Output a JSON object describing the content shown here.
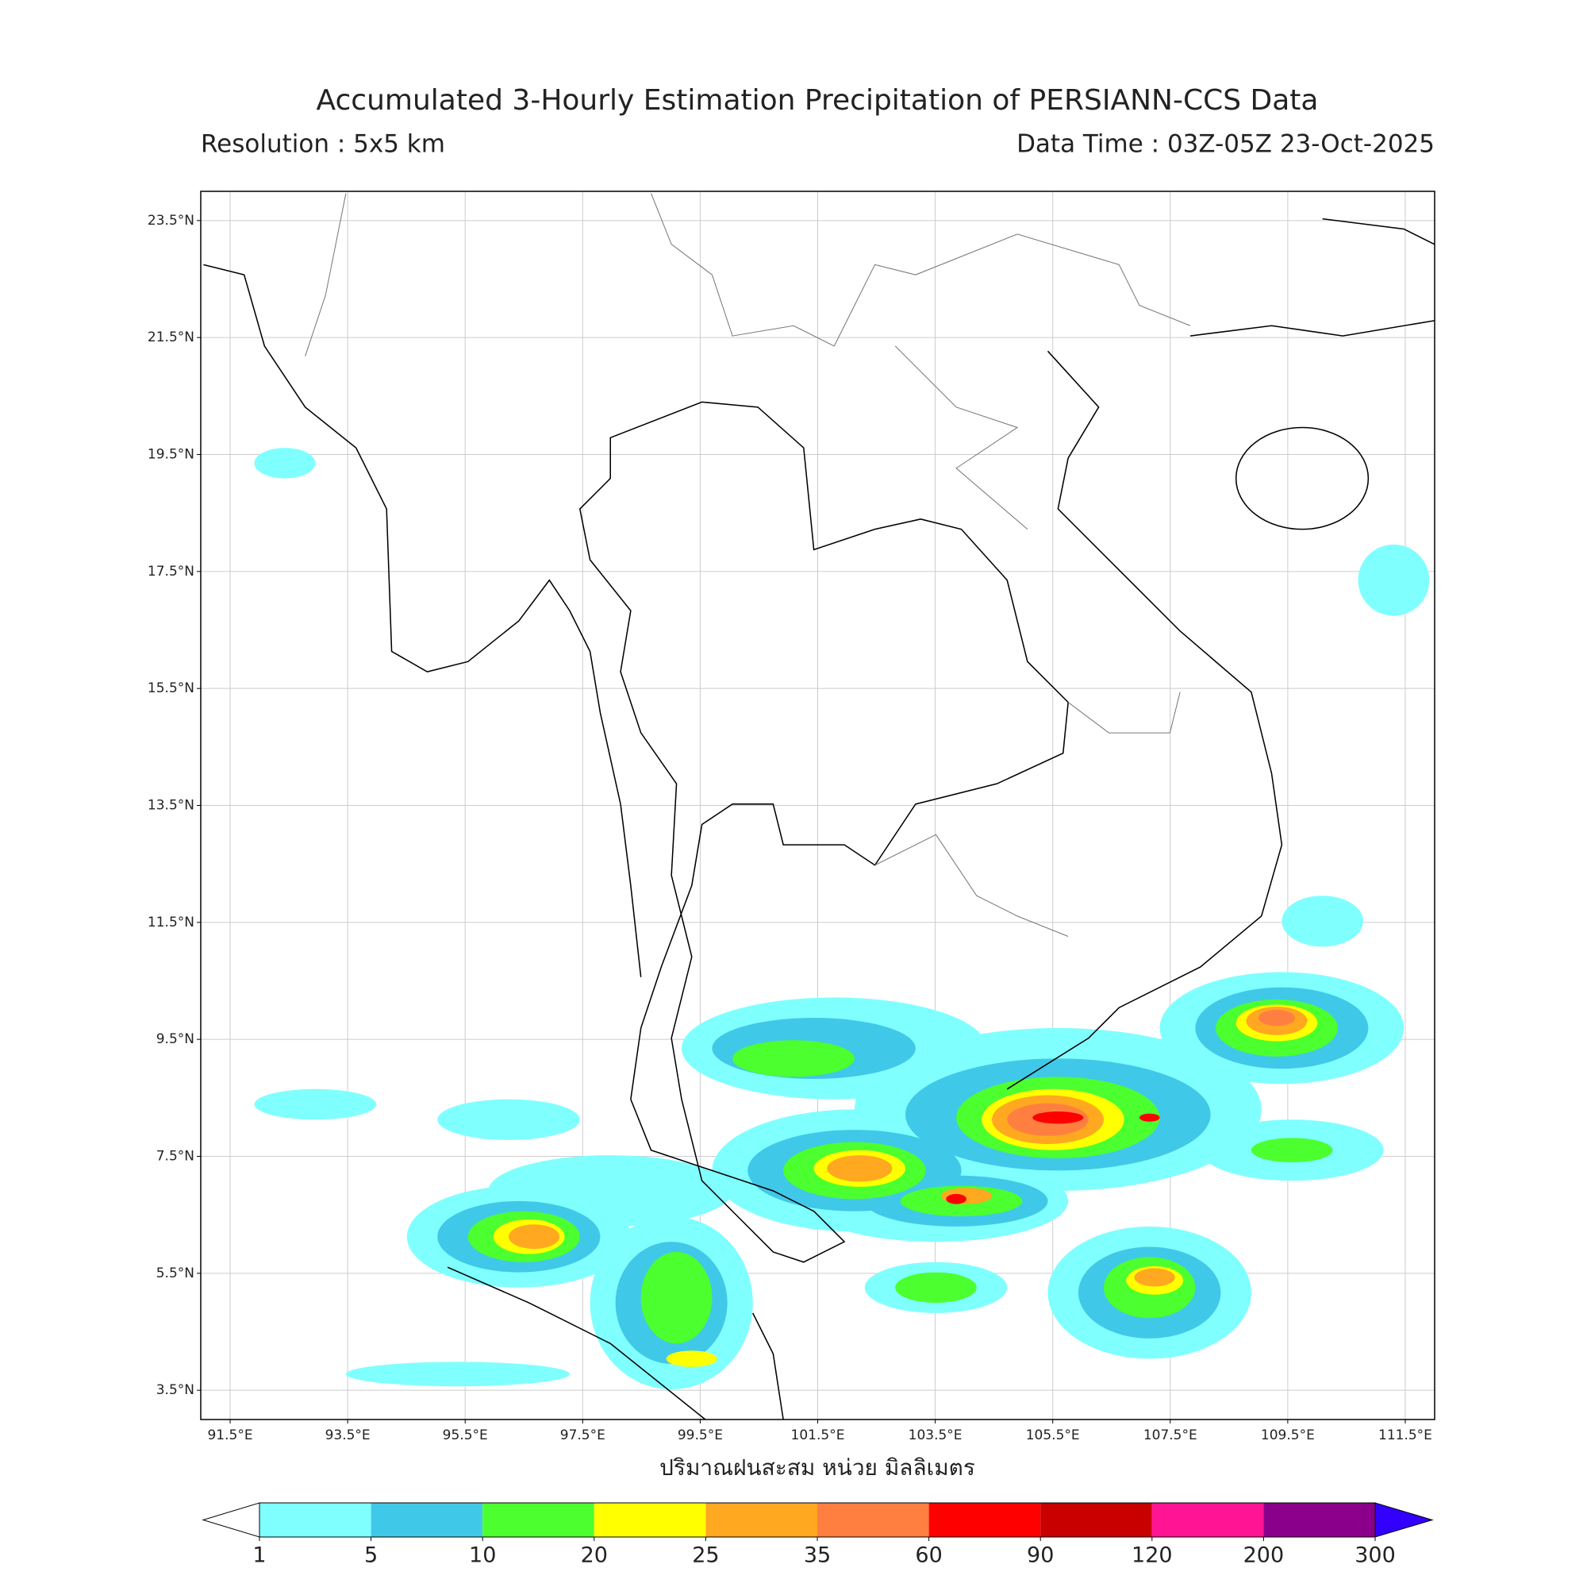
{
  "map": {
    "title": "Accumulated 3-Hourly Estimation Precipitation of PERSIANN-CCS Data",
    "subtitle_left": "Resolution : 5x5 km",
    "subtitle_right": "Data Time : 03Z-05Z 23-Oct-2025",
    "xlabel": "ปริมาณฝนสะสม หน่วย มิลลิเมตร",
    "xlim": [
      91,
      112
    ],
    "ylim": [
      3,
      24
    ],
    "grid": true,
    "xticks": [
      {
        "value": 91.5,
        "label": "91.5°E"
      },
      {
        "value": 93.5,
        "label": "93.5°E"
      },
      {
        "value": 95.5,
        "label": "95.5°E"
      },
      {
        "value": 97.5,
        "label": "97.5°E"
      },
      {
        "value": 99.5,
        "label": "99.5°E"
      },
      {
        "value": 101.5,
        "label": "101.5°E"
      },
      {
        "value": 103.5,
        "label": "103.5°E"
      },
      {
        "value": 105.5,
        "label": "105.5°E"
      },
      {
        "value": 107.5,
        "label": "107.5°E"
      },
      {
        "value": 109.5,
        "label": "109.5°E"
      },
      {
        "value": 111.5,
        "label": "111.5°E"
      }
    ],
    "yticks": [
      {
        "value": 3.5,
        "label": "3.5°N"
      },
      {
        "value": 5.5,
        "label": "5.5°N"
      },
      {
        "value": 7.5,
        "label": "7.5°N"
      },
      {
        "value": 9.5,
        "label": "9.5°N"
      },
      {
        "value": 11.5,
        "label": "11.5°N"
      },
      {
        "value": 13.5,
        "label": "13.5°N"
      },
      {
        "value": 15.5,
        "label": "15.5°N"
      },
      {
        "value": 17.5,
        "label": "17.5°N"
      },
      {
        "value": 19.5,
        "label": "19.5°N"
      },
      {
        "value": 21.5,
        "label": "21.5°N"
      },
      {
        "value": 23.5,
        "label": "23.5°N"
      }
    ]
  },
  "colorbar": {
    "ticks": [
      1,
      5,
      10,
      20,
      25,
      35,
      60,
      90,
      120,
      200,
      300
    ],
    "colors": [
      "#80ffff",
      "#40c8e8",
      "#4cff2e",
      "#ffff00",
      "#ffa820",
      "#ff7f40",
      "#ff0000",
      "#c80000",
      "#ff1493",
      "#8b008b"
    ],
    "under_color": "#ffffff",
    "over_color": "#3300ff"
  }
}
